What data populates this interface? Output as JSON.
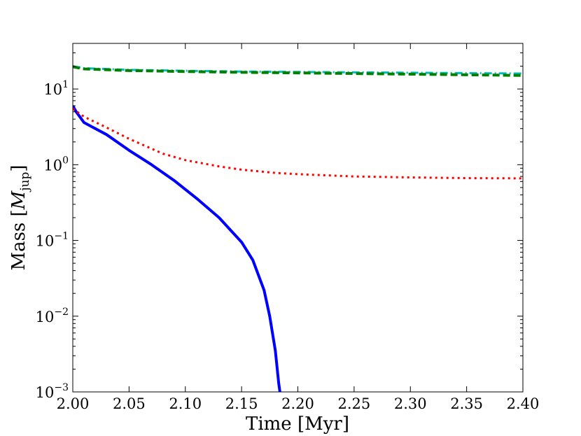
{
  "chart_data": {
    "type": "line",
    "title": "",
    "xlabel": "Time [Myr]",
    "ylabel": {
      "prefix": "Mass [",
      "symbol": "M",
      "subscript": "jup",
      "suffix": "]"
    },
    "xlim": [
      2.0,
      2.4
    ],
    "ylim": [
      0.001,
      40
    ],
    "yscale": "log",
    "grid": false,
    "legend": "none",
    "xticks": [
      2.0,
      2.05,
      2.1,
      2.15,
      2.2,
      2.25,
      2.3,
      2.35,
      2.4
    ],
    "xtick_labels": [
      "2.00",
      "2.05",
      "2.10",
      "2.15",
      "2.20",
      "2.25",
      "2.30",
      "2.35",
      "2.40"
    ],
    "yticks": [
      {
        "value": 0.001,
        "base": "10",
        "exp": "−3"
      },
      {
        "value": 0.01,
        "base": "10",
        "exp": "−2"
      },
      {
        "value": 0.1,
        "base": "10",
        "exp": "−1"
      },
      {
        "value": 1,
        "base": "10",
        "exp": "0"
      },
      {
        "value": 10,
        "base": "10",
        "exp": "1"
      }
    ],
    "series": [
      {
        "color": "#0000ff",
        "dash": "solid",
        "width": 4,
        "x": [
          2.0,
          2.003,
          2.01,
          2.03,
          2.05,
          2.07,
          2.09,
          2.11,
          2.13,
          2.15,
          2.16,
          2.17,
          2.175,
          2.18,
          2.183,
          2.185
        ],
        "y": [
          6.0,
          5.0,
          3.6,
          2.5,
          1.55,
          1.0,
          0.62,
          0.36,
          0.2,
          0.095,
          0.055,
          0.022,
          0.01,
          0.0035,
          0.0013,
          0.0008
        ]
      },
      {
        "color": "#ff0000",
        "dash": "dotted",
        "width": 3,
        "x": [
          2.0,
          2.01,
          2.03,
          2.05,
          2.08,
          2.1,
          2.13,
          2.15,
          2.18,
          2.2,
          2.25,
          2.3,
          2.35,
          2.4
        ],
        "y": [
          5.5,
          4.3,
          3.1,
          2.2,
          1.4,
          1.15,
          0.95,
          0.86,
          0.78,
          0.75,
          0.7,
          0.68,
          0.665,
          0.66
        ]
      },
      {
        "color": "#00bfbf",
        "dash": "dashdot",
        "width": 3,
        "x": [
          2.0,
          2.01,
          2.05,
          2.1,
          2.15,
          2.2,
          2.25,
          2.3,
          2.35,
          2.4
        ],
        "y": [
          20.0,
          18.8,
          17.9,
          17.4,
          17.0,
          16.8,
          16.6,
          16.4,
          16.2,
          16.0
        ]
      },
      {
        "color": "#007f00",
        "dash": "dashed",
        "width": 4,
        "x": [
          2.0,
          2.01,
          2.05,
          2.1,
          2.15,
          2.2,
          2.25,
          2.3,
          2.35,
          2.4
        ],
        "y": [
          19.6,
          18.4,
          17.5,
          17.0,
          16.6,
          16.3,
          16.0,
          15.7,
          15.4,
          15.1
        ]
      }
    ]
  }
}
